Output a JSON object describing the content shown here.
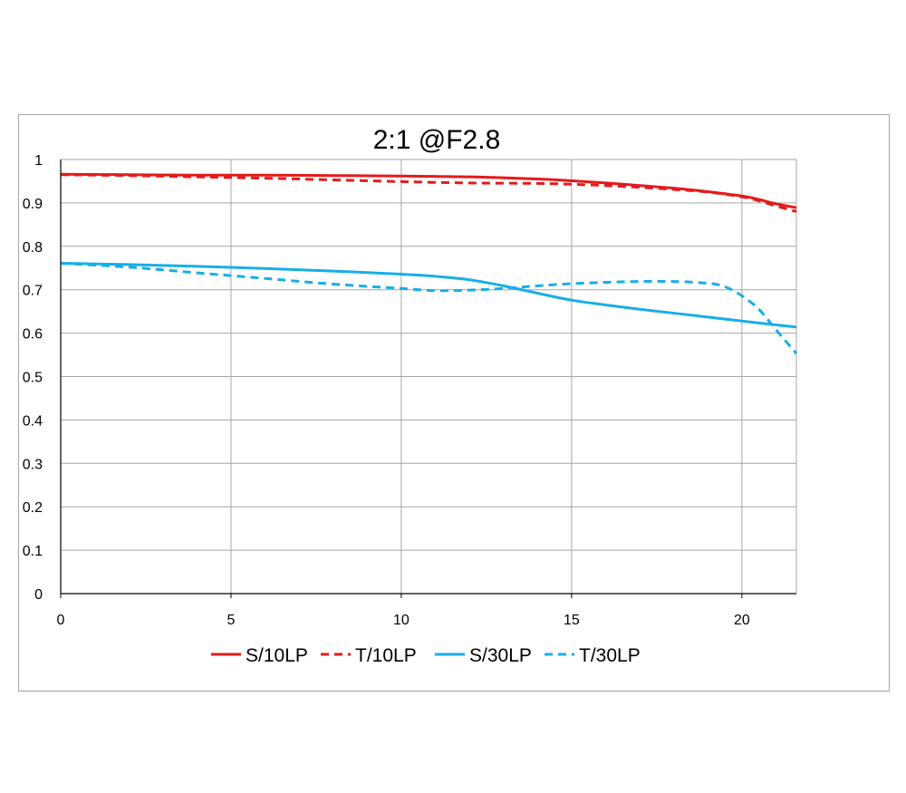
{
  "chart_data": {
    "type": "line",
    "title": "2:1  @F2.8",
    "xlabel": "",
    "ylabel": "",
    "xlim": [
      0,
      21.6
    ],
    "ylim": [
      0,
      1
    ],
    "xticks": [
      0,
      5,
      10,
      15,
      20
    ],
    "yticks": [
      0,
      0.1,
      0.2,
      0.3,
      0.4,
      0.5,
      0.6,
      0.7,
      0.8,
      0.9,
      1
    ],
    "grid": true,
    "legend_position": "bottom",
    "series": [
      {
        "name": "S/10LP",
        "color": "#e41a1c",
        "dash": "solid",
        "x": [
          0,
          2,
          4,
          6,
          8,
          10,
          12,
          14,
          15,
          16,
          17,
          18,
          19,
          20,
          20.5,
          21,
          21.6
        ],
        "y": [
          0.966,
          0.965,
          0.964,
          0.964,
          0.963,
          0.962,
          0.96,
          0.955,
          0.951,
          0.946,
          0.94,
          0.934,
          0.926,
          0.916,
          0.908,
          0.898,
          0.889
        ]
      },
      {
        "name": "T/10LP",
        "color": "#e41a1c",
        "dash": "dashed",
        "x": [
          0,
          2,
          4,
          6,
          8,
          10,
          12,
          14,
          15,
          16,
          17,
          18,
          19,
          20,
          20.5,
          21,
          21.6
        ],
        "y": [
          0.965,
          0.963,
          0.96,
          0.957,
          0.953,
          0.949,
          0.946,
          0.945,
          0.943,
          0.94,
          0.936,
          0.931,
          0.925,
          0.914,
          0.905,
          0.893,
          0.88
        ]
      },
      {
        "name": "S/30LP",
        "color": "#17aee8",
        "dash": "solid",
        "x": [
          0,
          2,
          4,
          6,
          8,
          10,
          11,
          12,
          13,
          14,
          15,
          16,
          17,
          18,
          19,
          20,
          21,
          21.6
        ],
        "y": [
          0.761,
          0.758,
          0.754,
          0.749,
          0.743,
          0.736,
          0.731,
          0.723,
          0.709,
          0.692,
          0.676,
          0.665,
          0.655,
          0.646,
          0.637,
          0.628,
          0.619,
          0.614
        ]
      },
      {
        "name": "T/30LP",
        "color": "#17aee8",
        "dash": "dashed",
        "x": [
          0,
          2,
          4,
          6,
          8,
          10,
          11,
          12,
          13,
          14,
          15,
          16,
          17,
          18,
          19,
          19.5,
          20,
          20.5,
          21,
          21.6
        ],
        "y": [
          0.761,
          0.752,
          0.739,
          0.726,
          0.713,
          0.703,
          0.698,
          0.699,
          0.703,
          0.709,
          0.714,
          0.717,
          0.719,
          0.719,
          0.715,
          0.707,
          0.686,
          0.655,
          0.608,
          0.553
        ]
      }
    ]
  }
}
